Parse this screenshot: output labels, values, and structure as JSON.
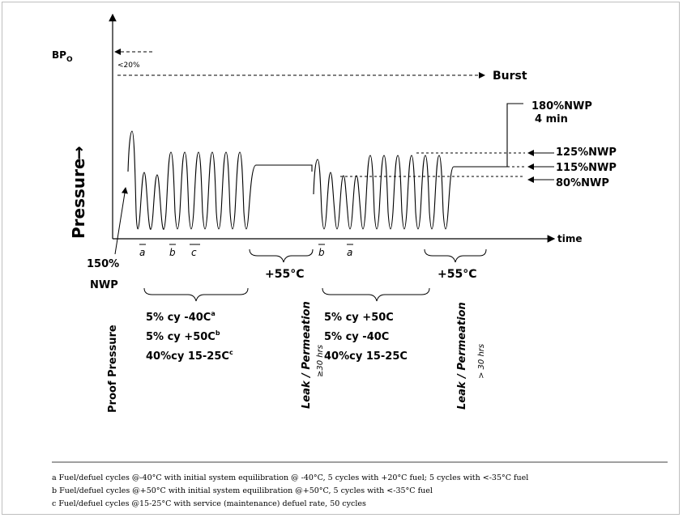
{
  "axes": {
    "y_label": "Pressure",
    "x_label": "time",
    "bp_label": "BP",
    "bp_sub": "O",
    "pct_label": "<20%"
  },
  "markers": {
    "burst": "Burst",
    "nwp180": "180%NWP",
    "min4": "4 min",
    "nwp125": "125%NWP",
    "nwp115": "115%NWP",
    "nwp80": "80%NWP",
    "nwp150_a": "150%",
    "nwp150_b": "NWP",
    "temp1": "+55°C",
    "temp2": "+55°C"
  },
  "phase_labels": {
    "a1": "a",
    "b1": "b",
    "c1": "c",
    "b2": "b",
    "a2": "a"
  },
  "vertical_labels": {
    "proof": "Proof Pressure",
    "leak1": "Leak / Permeation",
    "leak1_sub": "≥30 hrs",
    "leak2": "Leak / Permeation",
    "leak2_sub": "> 30 hrs"
  },
  "group1": {
    "l1_main": "5% cy  -40C",
    "l1_sup": "a",
    "l2_main": "5% cy  +50C",
    "l2_sup": "b",
    "l3_main": "40%cy 15-25C",
    "l3_sup": "c"
  },
  "group2": {
    "l1": "5% cy +50C",
    "l2": "5% cy  -40C",
    "l3": "40%cy 15-25C"
  },
  "footnotes": {
    "a": "a  Fuel/defuel cycles @-40°C with initial system equilibration @ -40°C, 5 cycles with +20°C fuel; 5 cycles with <-35°C fuel",
    "b": "b  Fuel/defuel cycles @+50°C with initial system equilibration @+50°C, 5 cycles with <-35°C fuel",
    "c": "c  Fuel/defuel cycles @15-25°C with service (maintenance) defuel rate, 50 cycles"
  },
  "colors": {
    "line": "#000000",
    "frame": "#bfbfbf"
  }
}
